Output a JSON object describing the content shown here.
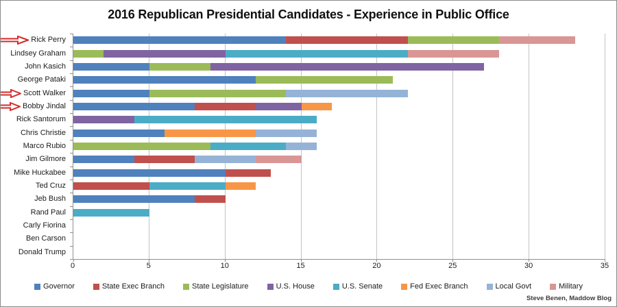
{
  "title": "2016 Republican Presidential Candidates - Experience in Public Office",
  "credit": "Steve Benen, Maddow Blog",
  "accent_arrow_color": "#d42a2a",
  "chart_data": {
    "type": "bar",
    "orientation": "horizontal",
    "stacked": true,
    "title": "2016 Republican Presidential Candidates - Experience in Public Office",
    "xlabel": "",
    "ylabel": "",
    "xlim": [
      0,
      35
    ],
    "xticks": [
      0,
      5,
      10,
      15,
      20,
      25,
      30,
      35
    ],
    "grid": true,
    "legend_position": "bottom",
    "categories": [
      "Rick Perry",
      "Lindsey Graham",
      "John Kasich",
      "George Pataki",
      "Scott Walker",
      "Bobby Jindal",
      "Rick Santorum",
      "Chris Christie",
      "Marco Rubio",
      "Jim Gilmore",
      "Mike Huckabee",
      "Ted Cruz",
      "Jeb Bush",
      "Rand Paul",
      "Carly Fiorina",
      "Ben Carson",
      "Donald Trump"
    ],
    "series": [
      {
        "name": "Governor",
        "color": "#4F81BD",
        "values": [
          14,
          0,
          5,
          12,
          5,
          8,
          0,
          6,
          0,
          4,
          10,
          0,
          8,
          0,
          0,
          0,
          0
        ]
      },
      {
        "name": "State Exec Branch",
        "color": "#C0504D",
        "values": [
          8,
          0,
          0,
          0,
          0,
          4,
          0,
          0,
          0,
          4,
          3,
          5,
          2,
          0,
          0,
          0,
          0
        ]
      },
      {
        "name": "State Legislature",
        "color": "#9BBB59",
        "values": [
          6,
          2,
          4,
          9,
          9,
          0,
          0,
          0,
          9,
          0,
          0,
          0,
          0,
          0,
          0,
          0,
          0
        ]
      },
      {
        "name": "U.S. House",
        "color": "#8064A2",
        "values": [
          0,
          8,
          18,
          0,
          0,
          3,
          4,
          0,
          0,
          0,
          0,
          0,
          0,
          0,
          0,
          0,
          0
        ]
      },
      {
        "name": "U.S. Senate",
        "color": "#4BACC6",
        "values": [
          0,
          12,
          0,
          0,
          0,
          0,
          12,
          0,
          5,
          0,
          0,
          5,
          0,
          5,
          0,
          0,
          0
        ]
      },
      {
        "name": "Fed Exec Branch",
        "color": "#F79646",
        "values": [
          0,
          0,
          0,
          0,
          0,
          2,
          0,
          6,
          0,
          0,
          0,
          2,
          0,
          0,
          0,
          0,
          0
        ]
      },
      {
        "name": "Local Govt",
        "color": "#95B3D7",
        "values": [
          0,
          0,
          0,
          0,
          8,
          0,
          0,
          4,
          2,
          4,
          0,
          0,
          0,
          0,
          0,
          0,
          0
        ]
      },
      {
        "name": "Military",
        "color": "#D99694",
        "values": [
          5,
          6,
          0,
          0,
          0,
          0,
          0,
          0,
          0,
          3,
          0,
          0,
          0,
          0,
          0,
          0,
          0
        ]
      }
    ],
    "annotations": [
      {
        "label": "Rick Perry",
        "marker": "red-arrow",
        "variant": "long"
      },
      {
        "label": "Scott Walker",
        "marker": "red-arrow",
        "variant": "short"
      },
      {
        "label": "Bobby Jindal",
        "marker": "red-arrow",
        "variant": "short"
      }
    ]
  }
}
